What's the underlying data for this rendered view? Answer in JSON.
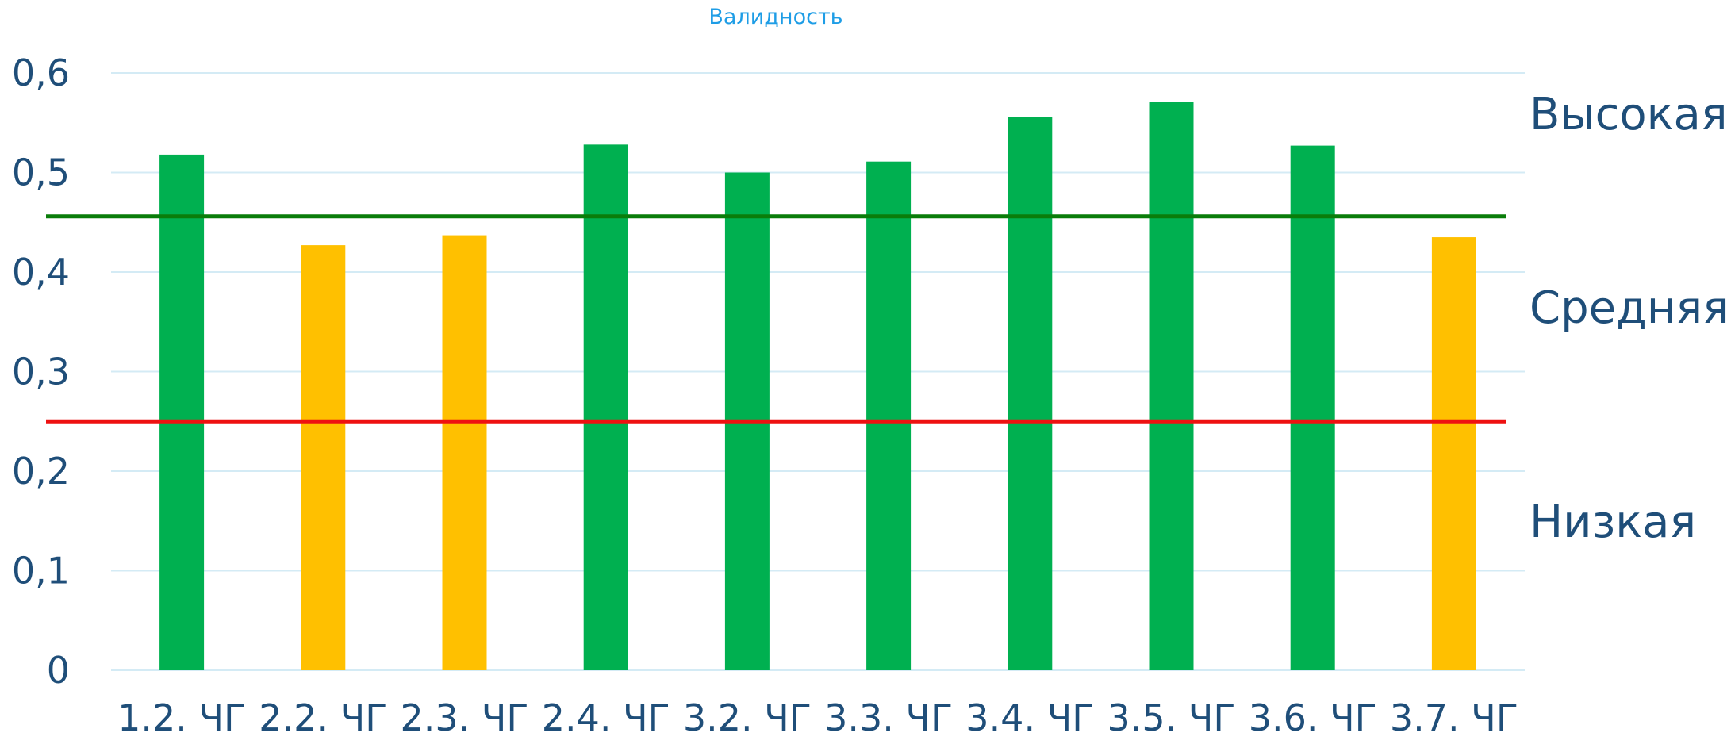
{
  "chart_data": {
    "type": "bar",
    "title": "Валидность",
    "xlabel": "",
    "ylabel": "",
    "categories": [
      "1.2. ЧГ",
      "2.2. ЧГ",
      "2.3. ЧГ",
      "2.4. ЧГ",
      "3.2. ЧГ",
      "3.3. ЧГ",
      "3.4. ЧГ",
      "3.5. ЧГ",
      "3.6. ЧГ",
      "3.7. ЧГ"
    ],
    "values": [
      0.518,
      0.427,
      0.437,
      0.528,
      0.5,
      0.511,
      0.556,
      0.571,
      0.527,
      0.435
    ],
    "ylim": [
      0,
      0.6
    ],
    "yticks": [
      0,
      0.1,
      0.2,
      0.3,
      0.4,
      0.5,
      0.6
    ],
    "ytick_labels": [
      "0",
      "0,1",
      "0,2",
      "0,3",
      "0,4",
      "0,5",
      "0,6"
    ],
    "grid": true,
    "thresholds": [
      {
        "value": 0.456,
        "color": "#0a7d0a"
      },
      {
        "value": 0.25,
        "color": "#ee1111"
      }
    ],
    "level_labels": [
      "Высокая",
      "Средняя",
      "Низкая"
    ],
    "colors": {
      "high": "#00b050",
      "medium": "#ffc000",
      "title": "#1e9de6",
      "axis_text": "#1f4e79",
      "grid": "#d4ebf5"
    },
    "bar_color_threshold": 0.456
  }
}
